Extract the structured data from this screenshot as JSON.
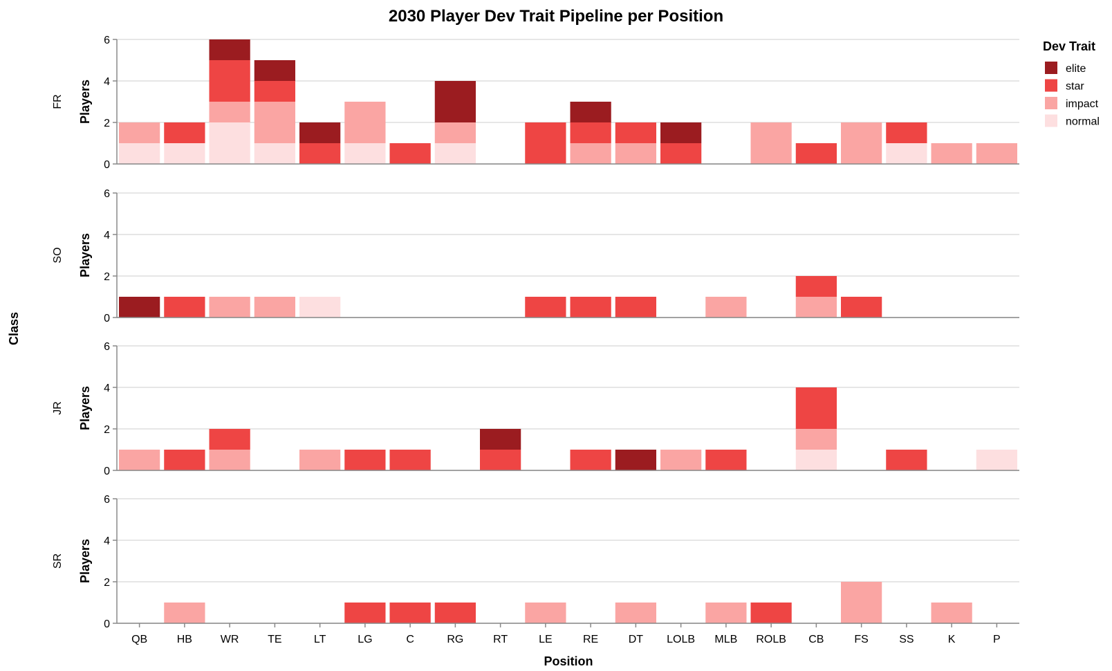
{
  "chart_data": {
    "type": "bar",
    "stacked": true,
    "title": "2030 Player Dev Trait Pipeline per Position",
    "xlabel": "Position",
    "ylabel": "Players",
    "row_title": "Class",
    "legend_title": "Dev Trait",
    "legend_position": "top-right",
    "grid": true,
    "ylim": [
      0,
      6
    ],
    "yticks": [
      0,
      2,
      4,
      6
    ],
    "categories": [
      "QB",
      "HB",
      "WR",
      "TE",
      "LT",
      "LG",
      "C",
      "RG",
      "RT",
      "LE",
      "RE",
      "DT",
      "LOLB",
      "MLB",
      "ROLB",
      "CB",
      "FS",
      "SS",
      "K",
      "P"
    ],
    "traits": [
      {
        "name": "elite",
        "color": "#9b1c20"
      },
      {
        "name": "star",
        "color": "#ee4544"
      },
      {
        "name": "impact",
        "color": "#faa5a3"
      },
      {
        "name": "normal",
        "color": "#fddfe0"
      }
    ],
    "stack_order_bottom_to_top": [
      "normal",
      "impact",
      "star",
      "elite"
    ],
    "facets": [
      {
        "class": "FR",
        "series": {
          "normal": [
            1,
            1,
            2,
            1,
            0,
            1,
            0,
            1,
            0,
            0,
            0,
            0,
            0,
            0,
            0,
            0,
            0,
            1,
            0,
            0
          ],
          "impact": [
            1,
            0,
            1,
            2,
            0,
            2,
            0,
            1,
            0,
            0,
            1,
            1,
            0,
            0,
            2,
            0,
            2,
            0,
            1,
            1
          ],
          "star": [
            0,
            1,
            2,
            1,
            1,
            0,
            1,
            0,
            0,
            2,
            1,
            1,
            1,
            0,
            0,
            1,
            0,
            1,
            0,
            0
          ],
          "elite": [
            0,
            0,
            1,
            1,
            1,
            0,
            0,
            2,
            0,
            0,
            1,
            0,
            1,
            0,
            0,
            0,
            0,
            0,
            0,
            0
          ]
        }
      },
      {
        "class": "SO",
        "series": {
          "normal": [
            0,
            0,
            0,
            0,
            1,
            0,
            0,
            0,
            0,
            0,
            0,
            0,
            0,
            0,
            0,
            0,
            0,
            0,
            0,
            0
          ],
          "impact": [
            0,
            0,
            1,
            1,
            0,
            0,
            0,
            0,
            0,
            0,
            0,
            0,
            0,
            1,
            0,
            1,
            0,
            0,
            0,
            0
          ],
          "star": [
            0,
            1,
            0,
            0,
            0,
            0,
            0,
            0,
            0,
            1,
            1,
            1,
            0,
            0,
            0,
            1,
            1,
            0,
            0,
            0
          ],
          "elite": [
            1,
            0,
            0,
            0,
            0,
            0,
            0,
            0,
            0,
            0,
            0,
            0,
            0,
            0,
            0,
            0,
            0,
            0,
            0,
            0
          ]
        }
      },
      {
        "class": "JR",
        "series": {
          "normal": [
            0,
            0,
            0,
            0,
            0,
            0,
            0,
            0,
            0,
            0,
            0,
            0,
            0,
            0,
            0,
            1,
            0,
            0,
            0,
            1
          ],
          "impact": [
            1,
            0,
            1,
            0,
            1,
            0,
            0,
            0,
            0,
            0,
            0,
            0,
            1,
            0,
            0,
            1,
            0,
            0,
            0,
            0
          ],
          "star": [
            0,
            1,
            1,
            0,
            0,
            1,
            1,
            0,
            1,
            0,
            1,
            0,
            0,
            1,
            0,
            2,
            0,
            1,
            0,
            0
          ],
          "elite": [
            0,
            0,
            0,
            0,
            0,
            0,
            0,
            0,
            1,
            0,
            0,
            1,
            0,
            0,
            0,
            0,
            0,
            0,
            0,
            0
          ]
        }
      },
      {
        "class": "SR",
        "series": {
          "normal": [
            0,
            0,
            0,
            0,
            0,
            0,
            0,
            0,
            0,
            0,
            0,
            0,
            0,
            0,
            0,
            0,
            0,
            0,
            0,
            0
          ],
          "impact": [
            0,
            1,
            0,
            0,
            0,
            0,
            0,
            0,
            0,
            1,
            0,
            1,
            0,
            1,
            0,
            0,
            2,
            0,
            1,
            0
          ],
          "star": [
            0,
            0,
            0,
            0,
            0,
            1,
            1,
            1,
            0,
            0,
            0,
            0,
            0,
            0,
            1,
            0,
            0,
            0,
            0,
            0
          ],
          "elite": [
            0,
            0,
            0,
            0,
            0,
            0,
            0,
            0,
            0,
            0,
            0,
            0,
            0,
            0,
            0,
            0,
            0,
            0,
            0,
            0
          ]
        }
      }
    ]
  }
}
